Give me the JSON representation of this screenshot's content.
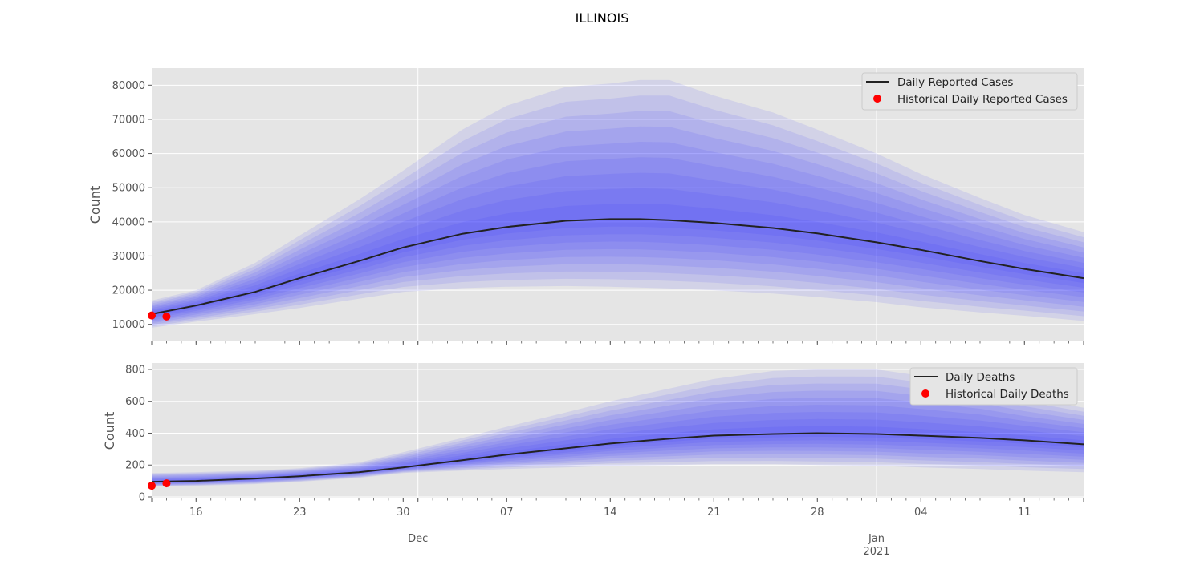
{
  "title": "ILLINOIS",
  "chart_data": [
    {
      "type": "line",
      "ylabel": "Count",
      "ylim": [
        5000,
        85000
      ],
      "yticks": [
        10000,
        20000,
        30000,
        40000,
        50000,
        60000,
        70000,
        80000
      ],
      "grid": true,
      "legend_position": "top-right",
      "x": [
        "2020-11-13",
        "2020-11-16",
        "2020-11-20",
        "2020-11-23",
        "2020-11-27",
        "2020-11-30",
        "2020-12-04",
        "2020-12-07",
        "2020-12-11",
        "2020-12-14",
        "2020-12-16",
        "2020-12-18",
        "2020-12-21",
        "2020-12-25",
        "2020-12-28",
        "2021-01-01",
        "2021-01-04",
        "2021-01-08",
        "2021-01-11",
        "2021-01-15"
      ],
      "series": [
        {
          "name": "Daily Reported Cases",
          "values": [
            13000,
            15500,
            19500,
            23500,
            28500,
            32500,
            36500,
            38500,
            40300,
            40800,
            40800,
            40500,
            39700,
            38200,
            36600,
            34000,
            31800,
            28500,
            26200,
            23500
          ]
        }
      ],
      "band": {
        "lower": [
          9000,
          10800,
          13000,
          14800,
          17500,
          19500,
          20600,
          21000,
          21200,
          21000,
          20800,
          20500,
          20000,
          19000,
          18000,
          16500,
          15000,
          13500,
          12500,
          11000
        ],
        "upper": [
          17000,
          20000,
          28000,
          36000,
          46500,
          55000,
          67000,
          74000,
          79500,
          80500,
          81500,
          81500,
          77000,
          72000,
          67000,
          60000,
          54000,
          47000,
          42000,
          37000
        ]
      },
      "historical": {
        "name": "Historical Daily Reported Cases",
        "x": [
          "2020-11-13",
          "2020-11-14"
        ],
        "values": [
          12600,
          12300
        ]
      }
    },
    {
      "type": "line",
      "ylabel": "Count",
      "ylim": [
        -10,
        840
      ],
      "yticks": [
        0,
        200,
        400,
        600,
        800
      ],
      "grid": true,
      "legend_position": "top-right",
      "x": [
        "2020-11-13",
        "2020-11-16",
        "2020-11-20",
        "2020-11-23",
        "2020-11-27",
        "2020-11-30",
        "2020-12-04",
        "2020-12-07",
        "2020-12-11",
        "2020-12-14",
        "2020-12-18",
        "2020-12-21",
        "2020-12-25",
        "2020-12-28",
        "2021-01-01",
        "2021-01-04",
        "2021-01-08",
        "2021-01-11",
        "2021-01-15"
      ],
      "series": [
        {
          "name": "Daily Deaths",
          "values": [
            95,
            100,
            115,
            130,
            155,
            185,
            230,
            265,
            305,
            335,
            365,
            385,
            395,
            400,
            395,
            385,
            370,
            355,
            330
          ]
        }
      ],
      "band": {
        "lower": [
          65,
          70,
          80,
          95,
          120,
          150,
          165,
          175,
          185,
          195,
          200,
          205,
          205,
          200,
          195,
          185,
          175,
          165,
          155
        ],
        "upper": [
          150,
          155,
          165,
          180,
          215,
          280,
          370,
          440,
          530,
          600,
          680,
          740,
          790,
          800,
          800,
          760,
          700,
          630,
          560
        ]
      },
      "historical": {
        "name": "Historical Daily Deaths",
        "x": [
          "2020-11-13",
          "2020-11-14"
        ],
        "values": [
          70,
          85
        ]
      }
    }
  ],
  "x_axis": {
    "major_ticks": [
      "2020-11-16",
      "2020-11-23",
      "2020-11-30",
      "2020-12-07",
      "2020-12-14",
      "2020-12-21",
      "2020-12-28",
      "2021-01-04",
      "2021-01-11"
    ],
    "major_labels": [
      "16",
      "23",
      "30",
      "07",
      "14",
      "21",
      "28",
      "04",
      "11"
    ],
    "month_ticks": [
      "2020-12-01",
      "2021-01-01"
    ],
    "month_labels": [
      "Dec",
      "Jan"
    ],
    "year_label": "2021"
  },
  "colors": {
    "panel_bg": "#e5e5e5",
    "grid": "#ffffff",
    "band": "#3434ff",
    "line": "#222222",
    "historical": "#ff0000"
  }
}
